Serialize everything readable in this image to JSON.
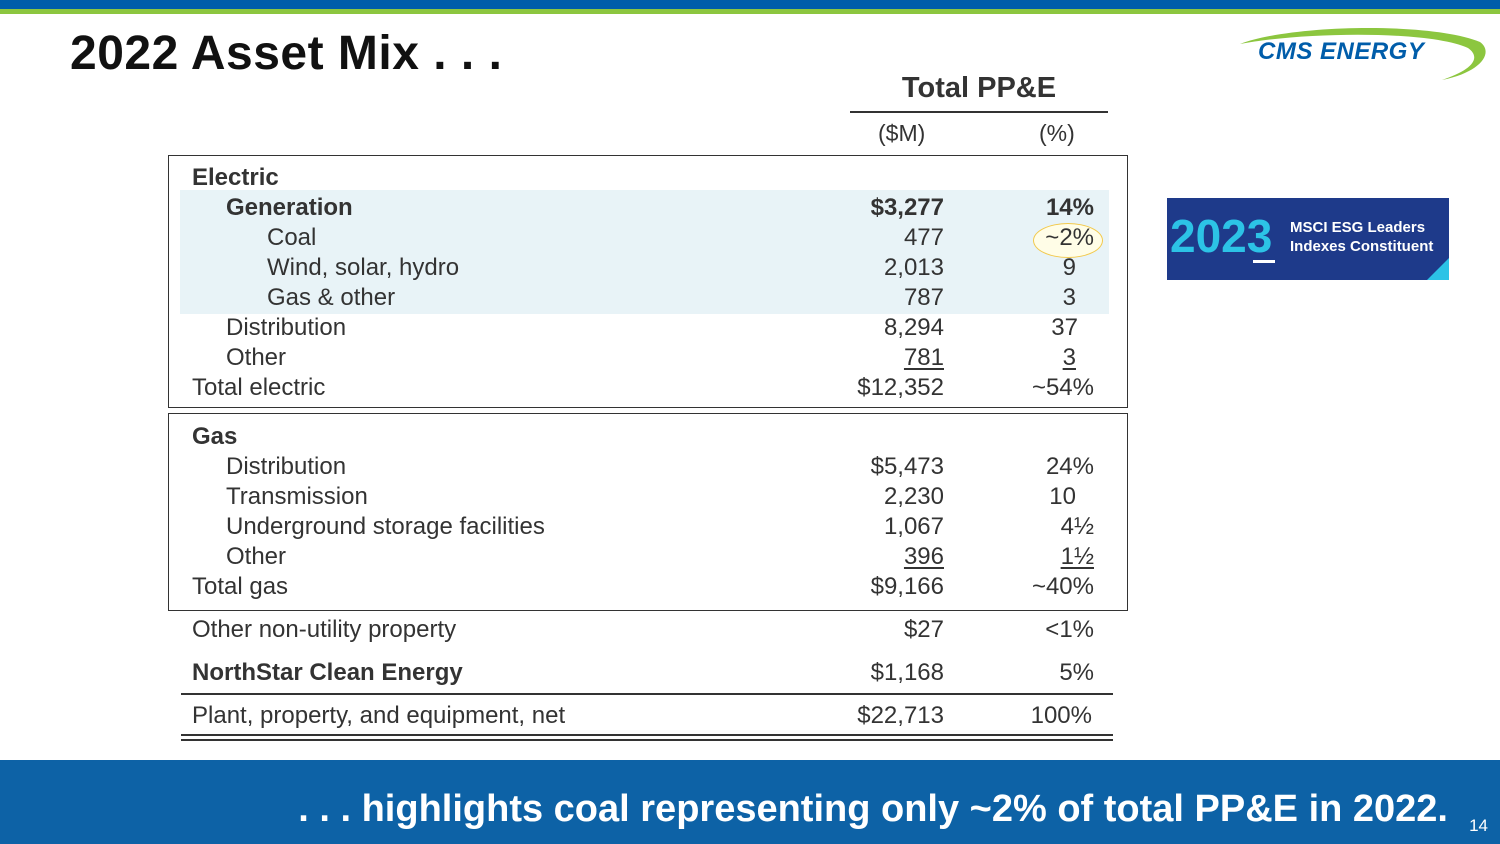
{
  "title": "2022 Asset Mix . . .",
  "logo": {
    "text": "CMS ENERGY",
    "colors": {
      "blue": "#005DAA",
      "green": "#8CC63F"
    }
  },
  "table": {
    "header": {
      "title": "Total PP&E",
      "amount_unit": "($M)",
      "percent_unit": "(%)"
    },
    "electric": {
      "heading": "Electric",
      "rows": [
        {
          "label": "Generation",
          "amount": "$3,277",
          "percent": "14%"
        },
        {
          "label": "Coal",
          "amount": "477",
          "percent": "~2%"
        },
        {
          "label": "Wind, solar, hydro",
          "amount": "2,013",
          "percent": "9"
        },
        {
          "label": "Gas & other",
          "amount": "787",
          "percent": "3"
        },
        {
          "label": "Distribution",
          "amount": "8,294",
          "percent": "37"
        },
        {
          "label": "Other",
          "amount": "781",
          "percent": "3"
        },
        {
          "label": "Total electric",
          "amount": "$12,352",
          "percent": "~54%"
        }
      ]
    },
    "gas": {
      "heading": "Gas",
      "rows": [
        {
          "label": "Distribution",
          "amount": "$5,473",
          "percent": "24%"
        },
        {
          "label": "Transmission",
          "amount": "2,230",
          "percent": "10"
        },
        {
          "label": "Underground storage facilities",
          "amount": "1,067",
          "percent": "4½"
        },
        {
          "label": "Other",
          "amount": "396",
          "percent": "1½"
        },
        {
          "label": "Total gas",
          "amount": "$9,166",
          "percent": "~40%"
        }
      ]
    },
    "other_nonutility": {
      "label": "Other non-utility property",
      "amount": "$27",
      "percent": "<1%"
    },
    "northstar": {
      "label": "NorthStar Clean Energy",
      "amount": "$1,168",
      "percent": "5%"
    },
    "total": {
      "label": "Plant, property, and equipment, net",
      "amount": "$22,713",
      "percent": "100%"
    }
  },
  "msci_badge": {
    "year": "2023",
    "line1": "MSCI ESG Leaders",
    "line2": "Indexes Constituent"
  },
  "footer": {
    "text": ". . . highlights coal representing only ~2% of total PP&E in 2022.",
    "page_number": "14"
  }
}
